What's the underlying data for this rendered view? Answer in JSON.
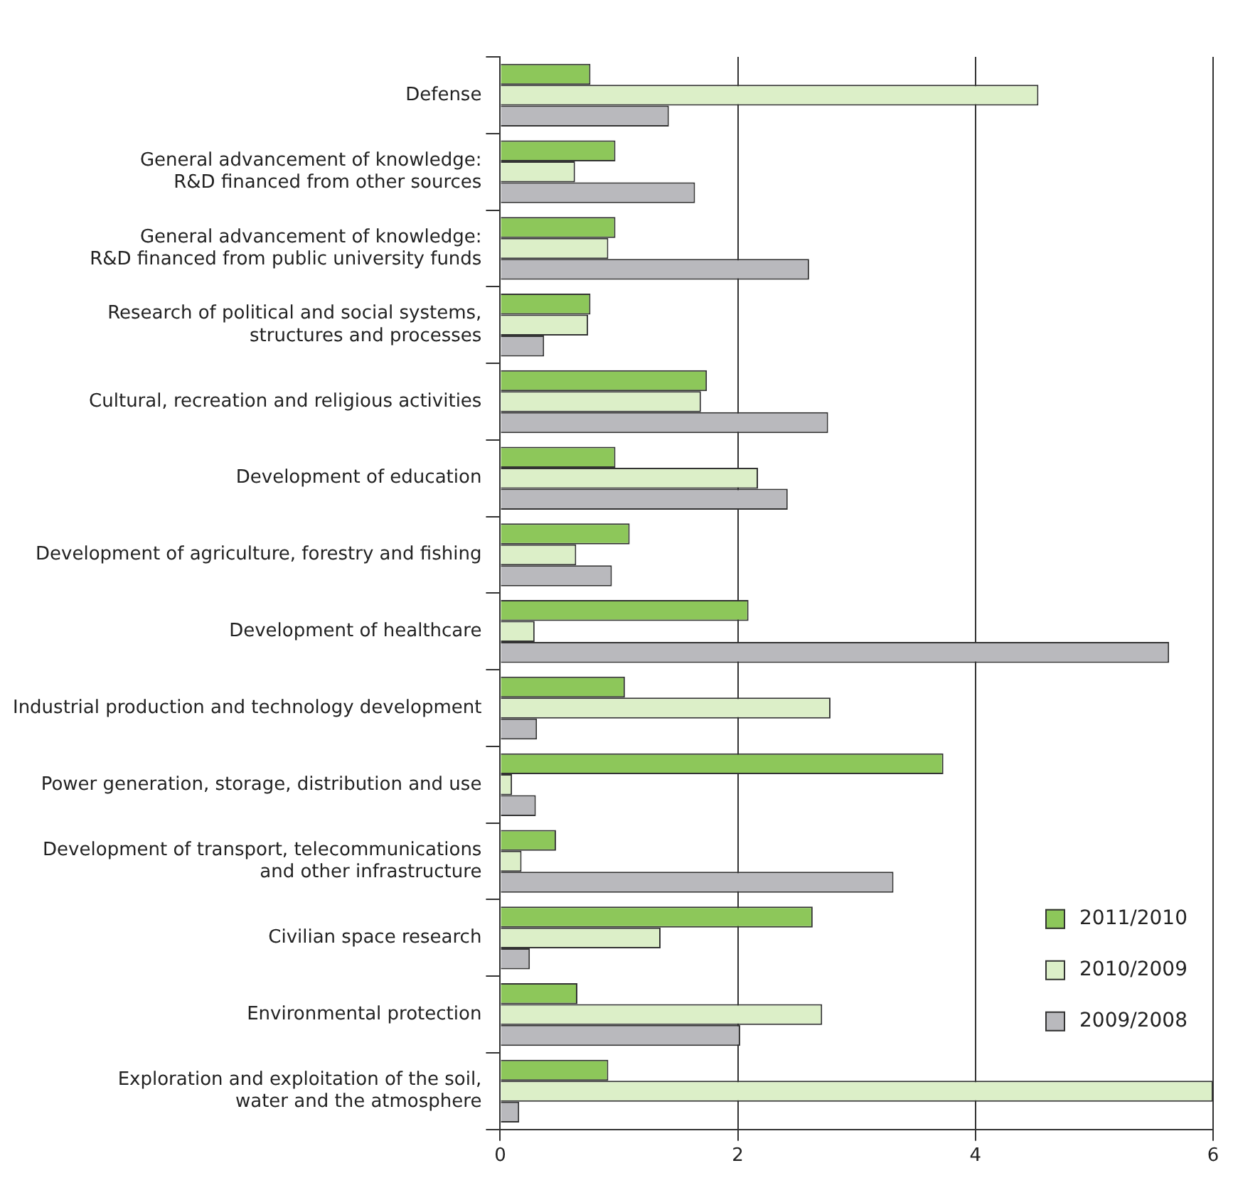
{
  "chart_data": {
    "type": "bar",
    "orientation": "horizontal",
    "categories": [
      "Defense",
      "General advancement of knowledge:\nR&D financed from other sources",
      "General advancement of knowledge:\nR&D financed from public university funds",
      "Research of political and social systems,\nstructures and processes",
      "Cultural, recreation and religious activities",
      "Development of education",
      "Development of agriculture, forestry and fishing",
      "Development of healthcare",
      "Industrial production and technology development",
      "Power generation, storage, distribution and use",
      "Development of transport, telecommunications\nand other infrastructure",
      "Civilian space research",
      "Environmental protection",
      "Exploration and exploitation of the soil,\nwater and the atmosphere"
    ],
    "series": [
      {
        "name": "2011/2010",
        "color": "#8dc75a",
        "values": [
          0.76,
          0.97,
          0.97,
          0.76,
          1.74,
          0.97,
          1.09,
          2.09,
          1.05,
          3.73,
          0.47,
          2.63,
          0.65,
          0.91
        ]
      },
      {
        "name": "2010/2009",
        "color": "#dcefc8",
        "values": [
          4.53,
          0.63,
          0.91,
          0.74,
          1.69,
          2.17,
          0.64,
          0.29,
          2.78,
          0.1,
          0.18,
          1.35,
          2.71,
          6.0
        ]
      },
      {
        "name": "2009/2008",
        "color": "#b9b9bd",
        "values": [
          1.42,
          1.64,
          2.6,
          0.37,
          2.76,
          2.42,
          0.94,
          5.63,
          0.31,
          0.3,
          3.31,
          0.25,
          2.02,
          0.16
        ]
      }
    ],
    "xlim": [
      0,
      6
    ],
    "xticks": [
      0,
      2,
      4,
      6
    ],
    "grid": "x",
    "legend": "bottom right"
  }
}
